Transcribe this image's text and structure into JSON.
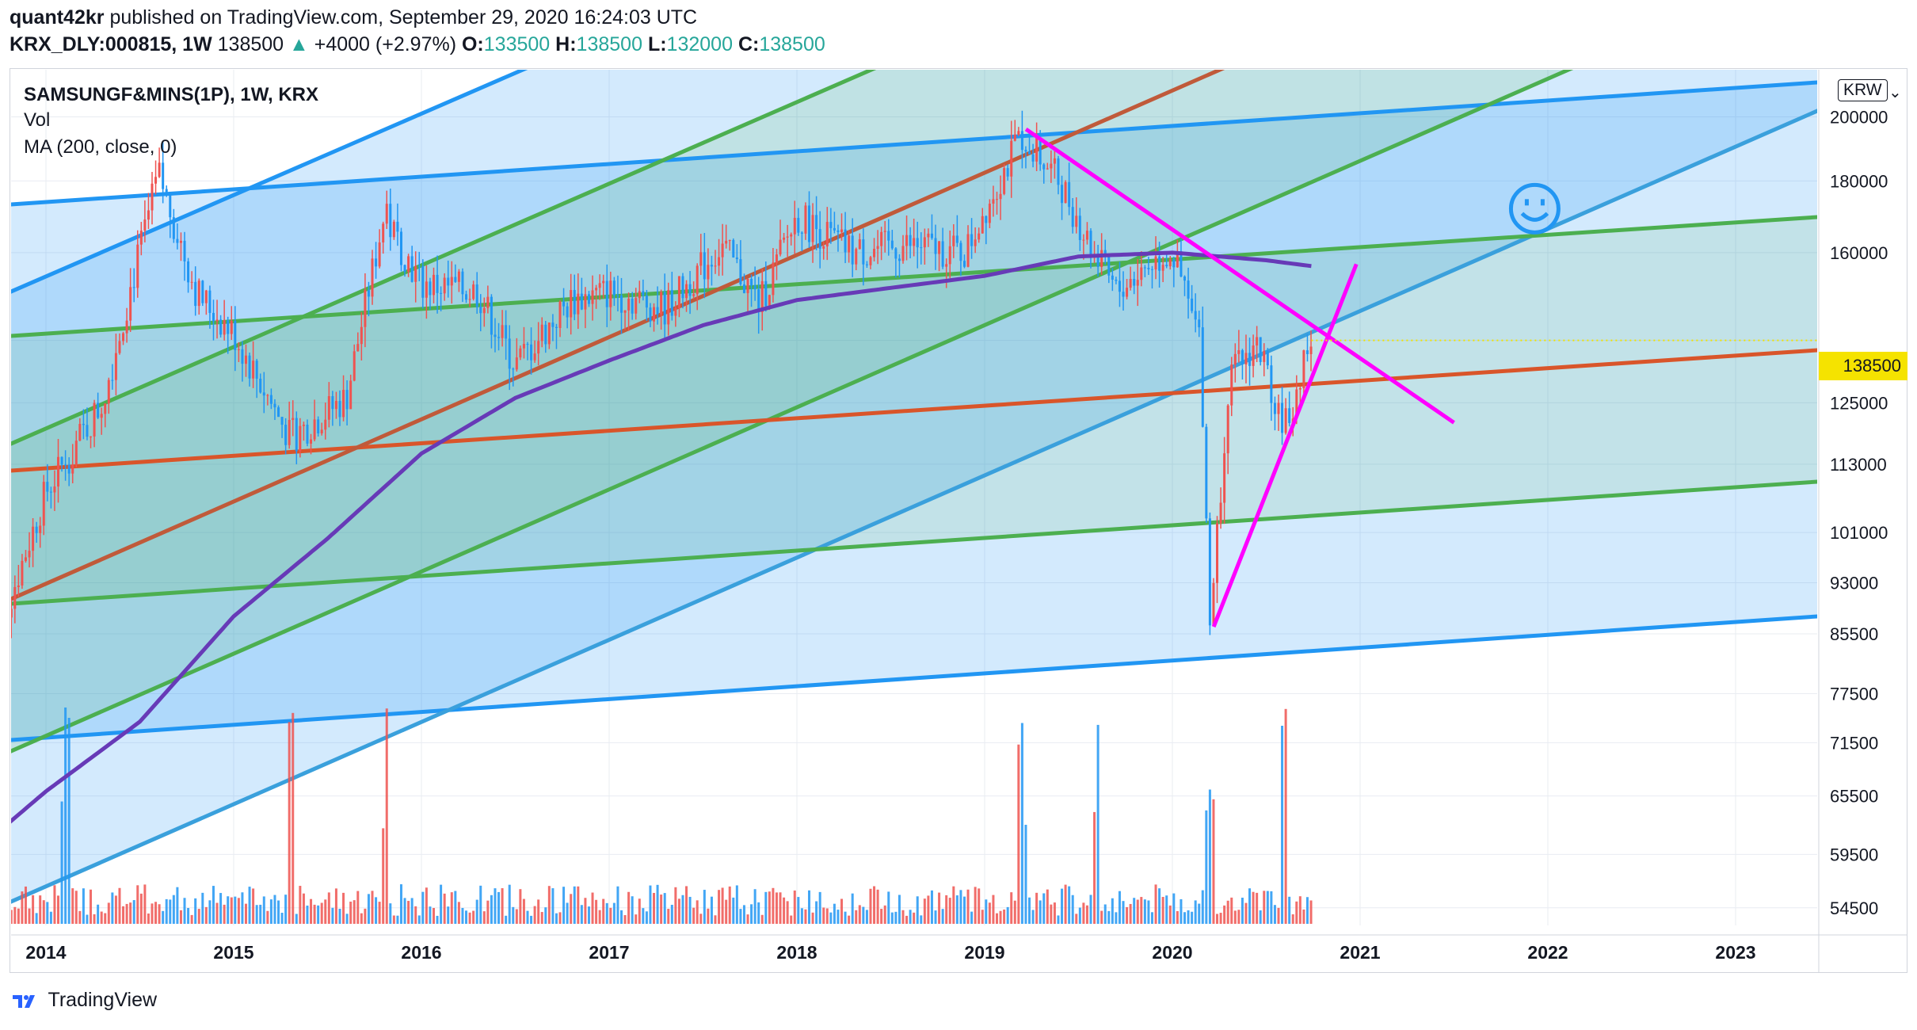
{
  "header": {
    "author": "quant42kr",
    "published": "published on TradingView.com, September 29, 2020 16:24:03 UTC",
    "symbol": "KRX_DLY:000815, 1W",
    "last": "138500",
    "change": "+4000 (+2.97%)",
    "o_label": "O:",
    "o": "133500",
    "h_label": "H:",
    "h": "138500",
    "l_label": "L:",
    "l": "132000",
    "c_label": "C:",
    "c": "138500"
  },
  "legend": {
    "title": "SAMSUNGF&MINS(1P), 1W, KRX",
    "vol": "Vol",
    "ma": "MA (200, close, 0)"
  },
  "currency": "KRW",
  "price_badge": "138500",
  "footer": {
    "brand": "TradingView"
  },
  "colors": {
    "up": "#ef5350",
    "down": "#2196f3",
    "ma": "#673ab7",
    "channel_blue": "#2196f3",
    "channel_green": "#4caf50",
    "channel_red": "#d9552a",
    "magenta": "#ff00ff",
    "badge": "#f5e300"
  },
  "chart_data": {
    "type": "line",
    "scale": "log",
    "y_ticks": [
      200000,
      180000,
      160000,
      138500,
      125000,
      113000,
      101000,
      93000,
      85500,
      77500,
      71500,
      65500,
      59500,
      54500
    ],
    "y_tick_labels": [
      "200000",
      "180000",
      "160000",
      "138500",
      "125000",
      "113000",
      "101000",
      "93000",
      "85500",
      "77500",
      "71500",
      "65500",
      "59500",
      "54500"
    ],
    "x_ticks": [
      "2014",
      "2015",
      "2016",
      "2017",
      "2018",
      "2019",
      "2020",
      "2021",
      "2022",
      "2023"
    ],
    "last_price": 138500,
    "series": [
      {
        "name": "SAMSUNGF&MINS(1P)",
        "x": [
          2013.7,
          2014.0,
          2014.3,
          2014.6,
          2014.8,
          2015.0,
          2015.3,
          2015.6,
          2015.8,
          2016.0,
          2016.3,
          2016.5,
          2016.8,
          2017.0,
          2017.3,
          2017.6,
          2017.8,
          2018.0,
          2018.3,
          2018.6,
          2018.9,
          2019.0,
          2019.2,
          2019.4,
          2019.6,
          2019.7,
          2019.9,
          2020.0,
          2020.15,
          2020.2,
          2020.3,
          2020.45,
          2020.6,
          2020.74
        ],
        "values": [
          82000,
          108000,
          125000,
          182000,
          150000,
          140000,
          118000,
          126000,
          170000,
          152000,
          150000,
          133000,
          148000,
          150000,
          146000,
          162000,
          147000,
          170000,
          160000,
          162000,
          160000,
          172000,
          194000,
          180000,
          158000,
          150000,
          158000,
          160000,
          138000,
          86000,
          130000,
          138000,
          120000,
          138500
        ]
      },
      {
        "name": "MA (200, close, 0)",
        "x": [
          2013.7,
          2014.0,
          2014.5,
          2015.0,
          2015.5,
          2016.0,
          2016.5,
          2017.0,
          2017.5,
          2018.0,
          2018.5,
          2019.0,
          2019.5,
          2020.0,
          2020.5,
          2020.74
        ],
        "values": [
          61000,
          66000,
          74000,
          88000,
          100000,
          115000,
          126000,
          134000,
          142000,
          148000,
          151000,
          154000,
          159000,
          160000,
          158000,
          156500
        ]
      }
    ],
    "volume_bars": "weekly, red for up weeks and blue for down weeks, spikes near 2014.1, 2019.2, 2019.6, 2020.2, 2020.6",
    "drawings": [
      {
        "type": "parallel channel",
        "color": "blue",
        "description": "wide ascending channel from 2014 lows to 2019 highs"
      },
      {
        "type": "parallel channel",
        "color": "green",
        "description": "inner ascending channel"
      },
      {
        "type": "trend line",
        "color": "red",
        "description": "median line rising from 2013 to 2023"
      },
      {
        "type": "trend line",
        "color": "magenta",
        "description": "descending line from 2019 peak near 196000"
      },
      {
        "type": "trend line",
        "color": "magenta",
        "description": "rising line from March 2020 low near 86000"
      }
    ],
    "annotation": "smiley face icon near 2021.9 / 172000",
    "grid": true
  }
}
